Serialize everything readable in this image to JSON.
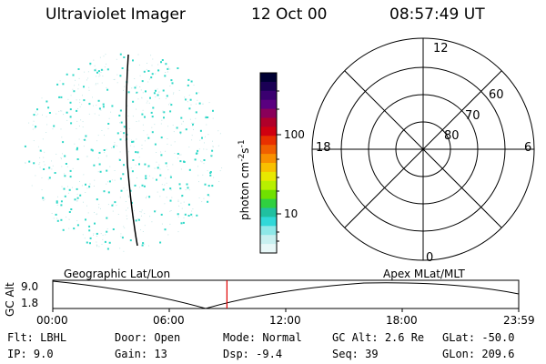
{
  "header": {
    "title": "Ultraviolet Imager",
    "date": "12 Oct 00",
    "time": "08:57:49 UT"
  },
  "colorbar": {
    "label": "photon cm",
    "label_exp1": "-2",
    "label_mid": "s",
    "label_exp2": "-1",
    "ticks": [
      "100",
      "10"
    ],
    "colors": [
      "#000033",
      "#1a0055",
      "#3a0070",
      "#5a0080",
      "#8a005a",
      "#b0002a",
      "#d00010",
      "#e83000",
      "#f06000",
      "#f89000",
      "#f8c000",
      "#e8e800",
      "#b8f000",
      "#70e000",
      "#30d040",
      "#20c0a0",
      "#30d8d8",
      "#8ee8e8",
      "#c8f0f0",
      "#e8f8f8"
    ]
  },
  "polar": {
    "labels": {
      "top": "12",
      "left": "18",
      "right": "6",
      "bottom": "0",
      "ring60": "60",
      "ring70": "70",
      "ring80": "80"
    }
  },
  "timeline": {
    "ylabel": "GC Alt",
    "ytick_top": "9.0",
    "ytick_bottom": "1.8",
    "left_label": "Geographic Lat/Lon",
    "right_label": "Apex MLat/MLT",
    "xticks": [
      "00:00",
      "06:00",
      "12:00",
      "18:00",
      "23:59"
    ],
    "current_time_hours": 8.964
  },
  "footer": {
    "flt_label": "Flt:",
    "flt_value": "LBHL",
    "ip_label": "IP:",
    "ip_value": "9.0",
    "door_label": "Door:",
    "door_value": "Open",
    "gain_label": "Gain:",
    "gain_value": "13",
    "mode_label": "Mode:",
    "mode_value": "Normal",
    "dsp_label": "Dsp:",
    "dsp_value": "-9.4",
    "gcalt_label": "GC Alt:",
    "gcalt_value": "2.6 Re",
    "seq_label": "Seq:",
    "seq_value": "39",
    "glat_label": "GLat:",
    "glat_value": "-50.0",
    "glon_label": "GLon:",
    "glon_value": "209.6"
  },
  "accent_colors": {
    "speckle": "#30d8c8",
    "time_marker": "#e00000"
  }
}
